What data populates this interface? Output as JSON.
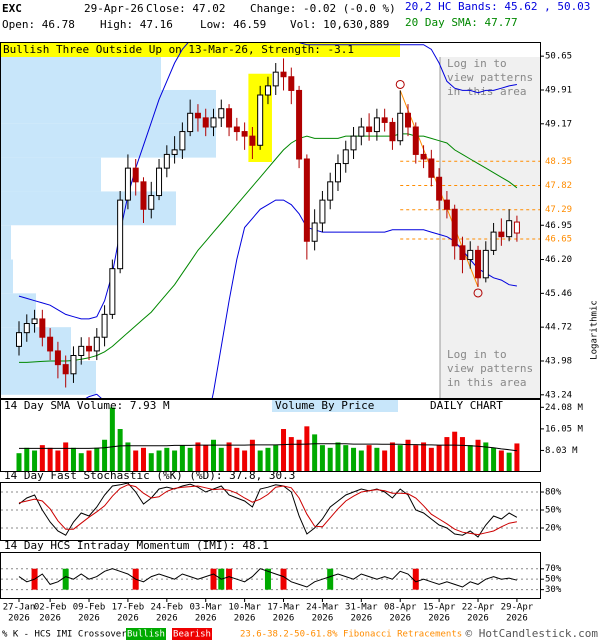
{
  "header": {
    "symbol": "EXC",
    "date": "29-Apr-26",
    "close": "Close: 47.02",
    "change": "Change: -0.02 (-0.0 %)",
    "open": "Open: 46.78",
    "high": "High: 47.16",
    "low": "Low: 46.59",
    "volume": "Vol: 10,630,889",
    "bands": "20,2 HC Bands: 45.62 , 50.03",
    "sma": "20 Day SMA: 47.77"
  },
  "chart_data": [
    {
      "type": "candlestick",
      "pattern_label": "Bullish Three Outside Up on 13-Mar-26, Strength: -3.1",
      "login_text": [
        "Log in to",
        "view patterns",
        "in this area"
      ],
      "scale_label": "Logarithmic",
      "year": "2026",
      "categories": [
        "27-Jan",
        null,
        null,
        null,
        "02-Feb",
        null,
        null,
        null,
        null,
        "09-Feb",
        null,
        null,
        null,
        null,
        "17-Feb",
        null,
        null,
        null,
        null,
        "24-Feb",
        null,
        null,
        null,
        null,
        "03-Mar",
        null,
        null,
        null,
        null,
        "10-Mar",
        null,
        null,
        null,
        null,
        "17-Mar",
        null,
        null,
        null,
        null,
        "24-Mar",
        null,
        null,
        null,
        null,
        "31-Mar",
        null,
        null,
        null,
        null,
        "08-Apr",
        null,
        null,
        null,
        null,
        "15-Apr",
        null,
        null,
        null,
        null,
        "22-Apr",
        null,
        null,
        null,
        null,
        "29-Apr"
      ],
      "open": [
        44.3,
        44.6,
        44.8,
        44.9,
        44.5,
        44.2,
        43.9,
        43.7,
        44.1,
        44.3,
        44.2,
        44.5,
        45.0,
        46.0,
        47.5,
        48.2,
        47.9,
        47.3,
        47.6,
        48.2,
        48.5,
        48.6,
        49.0,
        49.4,
        49.3,
        49.1,
        49.3,
        49.5,
        49.1,
        49.0,
        48.9,
        48.7,
        49.8,
        50.0,
        50.3,
        50.2,
        49.9,
        48.4,
        46.6,
        47.0,
        47.5,
        47.9,
        48.3,
        48.6,
        48.9,
        49.1,
        49.0,
        49.3,
        49.2,
        48.8,
        49.4,
        49.1,
        48.5,
        48.4,
        48.0,
        47.5,
        47.3,
        46.5,
        46.2,
        46.4,
        45.8,
        46.4,
        46.8,
        46.7,
        46.78
      ],
      "high": [
        44.85,
        45.0,
        45.1,
        45.1,
        44.7,
        44.4,
        44.1,
        44.3,
        44.5,
        44.5,
        44.7,
        45.2,
        46.2,
        47.7,
        48.5,
        48.4,
        48.0,
        47.9,
        48.4,
        48.7,
        48.9,
        49.2,
        49.7,
        49.6,
        49.5,
        49.5,
        49.7,
        49.6,
        49.3,
        49.2,
        49.1,
        50.0,
        50.2,
        50.5,
        50.6,
        50.4,
        50.0,
        48.5,
        47.3,
        47.7,
        48.1,
        48.5,
        48.8,
        49.1,
        49.3,
        49.4,
        49.5,
        49.5,
        49.3,
        49.9,
        49.6,
        49.2,
        48.7,
        48.6,
        48.2,
        47.7,
        47.4,
        46.7,
        46.6,
        46.5,
        46.6,
        47.0,
        47.1,
        47.3,
        47.16
      ],
      "low": [
        44.1,
        44.4,
        44.6,
        44.3,
        44.0,
        43.6,
        43.4,
        43.5,
        43.9,
        44.0,
        44.0,
        44.3,
        44.9,
        45.9,
        47.3,
        47.6,
        47.0,
        47.1,
        47.5,
        48.0,
        48.3,
        48.4,
        48.9,
        49.0,
        48.9,
        48.9,
        49.1,
        48.9,
        48.8,
        48.6,
        48.4,
        48.6,
        49.6,
        49.8,
        49.9,
        49.6,
        48.2,
        46.2,
        46.4,
        46.8,
        47.3,
        47.7,
        48.1,
        48.4,
        48.7,
        48.8,
        48.8,
        49.0,
        48.6,
        48.7,
        48.9,
        48.3,
        48.2,
        47.8,
        47.3,
        47.1,
        46.2,
        45.9,
        46.0,
        45.6,
        45.7,
        46.3,
        46.5,
        46.6,
        46.59
      ],
      "close": [
        44.6,
        44.8,
        44.9,
        44.5,
        44.2,
        43.9,
        43.7,
        44.1,
        44.3,
        44.2,
        44.5,
        45.0,
        46.0,
        47.5,
        48.2,
        47.9,
        47.3,
        47.6,
        48.2,
        48.5,
        48.6,
        49.0,
        49.4,
        49.3,
        49.1,
        49.3,
        49.5,
        49.1,
        49.0,
        48.9,
        48.7,
        49.8,
        50.0,
        50.3,
        50.2,
        49.9,
        48.4,
        46.6,
        47.0,
        47.5,
        47.9,
        48.3,
        48.6,
        48.9,
        49.1,
        49.0,
        49.3,
        49.2,
        48.8,
        49.4,
        49.1,
        48.5,
        48.4,
        48.0,
        47.5,
        47.3,
        46.5,
        46.2,
        46.4,
        45.8,
        46.4,
        46.8,
        46.7,
        47.05,
        47.02
      ],
      "overlays": [
        {
          "color": "#0000dd",
          "values": [
            45.4,
            45.35,
            45.3,
            45.25,
            45.2,
            45.1,
            45.0,
            44.95,
            44.9,
            44.9,
            44.95,
            45.3,
            45.9,
            46.8,
            47.6,
            48.2,
            48.7,
            49.2,
            49.7,
            50.1,
            50.5,
            50.8,
            51.0,
            51.2,
            51.4,
            51.5,
            51.6,
            51.6,
            51.5,
            51.4,
            51.3,
            51.3,
            51.3,
            51.2,
            51.1,
            51.0,
            50.95,
            50.9,
            50.9,
            50.9,
            50.9,
            50.9,
            50.9,
            50.9,
            50.9,
            50.9,
            50.9,
            50.9,
            50.9,
            50.9,
            50.9,
            50.9,
            50.9,
            50.8,
            50.5,
            50.1,
            49.95,
            49.9,
            49.9,
            49.85,
            49.9,
            49.9,
            49.95,
            50.0,
            50.03
          ]
        },
        {
          "color": "#008800",
          "values": [
            43.95,
            43.95,
            43.96,
            43.97,
            43.98,
            43.98,
            43.98,
            43.99,
            44.02,
            44.05,
            44.1,
            44.18,
            44.3,
            44.45,
            44.6,
            44.75,
            44.9,
            45.05,
            45.25,
            45.45,
            45.65,
            45.9,
            46.15,
            46.4,
            46.6,
            46.8,
            47.0,
            47.2,
            47.4,
            47.6,
            47.8,
            48.0,
            48.2,
            48.4,
            48.6,
            48.75,
            48.85,
            48.9,
            48.85,
            48.85,
            48.85,
            48.85,
            48.9,
            48.9,
            48.9,
            48.9,
            48.9,
            48.9,
            48.9,
            48.95,
            48.95,
            48.9,
            48.9,
            48.85,
            48.8,
            48.75,
            48.6,
            48.5,
            48.4,
            48.3,
            48.2,
            48.1,
            48.0,
            47.9,
            47.77
          ]
        },
        {
          "color": "#0000dd",
          "values": [
            42.5,
            42.55,
            42.6,
            42.7,
            42.8,
            42.85,
            42.9,
            43.0,
            43.1,
            43.2,
            43.25,
            43.1,
            42.7,
            42.1,
            41.6,
            41.3,
            41.1,
            40.9,
            40.8,
            40.8,
            40.8,
            41.0,
            41.3,
            41.8,
            42.5,
            43.3,
            44.3,
            45.3,
            46.2,
            46.9,
            47.1,
            47.3,
            47.4,
            47.5,
            47.5,
            47.4,
            47.2,
            46.9,
            46.85,
            46.8,
            46.8,
            46.8,
            46.8,
            46.8,
            46.8,
            46.8,
            46.8,
            46.8,
            46.85,
            46.85,
            46.85,
            46.85,
            46.85,
            46.8,
            46.75,
            46.7,
            46.6,
            46.4,
            46.2,
            46.0,
            45.9,
            45.8,
            45.75,
            45.65,
            45.62
          ]
        }
      ],
      "fib_levels": {
        "color": "#ff8c00",
        "values": [
          48.35,
          47.82,
          47.29,
          46.65
        ]
      },
      "volume_by_price": {
        "color": "#c8e6fa",
        "bins": [
          43.24,
          43.98,
          44.72,
          45.46,
          46.2,
          46.95,
          47.69,
          48.43,
          49.17,
          49.91,
          50.65
        ],
        "values": [
          95,
          70,
          35,
          12,
          10,
          175,
          100,
          215,
          215,
          160
        ]
      },
      "ylim": [
        43.17,
        50.96
      ],
      "yticks": [
        50.65,
        49.91,
        49.17,
        46.95,
        {
          "value": 46.2,
          "label": "46.20"
        },
        45.46,
        44.72,
        43.98,
        43.24
      ]
    },
    {
      "type": "bar",
      "title": "14 Day SMA Volume: 7.93 M",
      "label": "Volume By Price",
      "chart_label": "DAILY CHART",
      "up_color": "#00aa00",
      "down_color": "#ee0000",
      "line_color": "#000000",
      "values": [
        7,
        9,
        8,
        10,
        9,
        8,
        11,
        9,
        7,
        8,
        9,
        12,
        24,
        16,
        11,
        8,
        9,
        7,
        8,
        9,
        8,
        10,
        9,
        11,
        10,
        12,
        9,
        11,
        9,
        8,
        12,
        8,
        9,
        10,
        16,
        13,
        12,
        17,
        14,
        10,
        9,
        11,
        10,
        9,
        8,
        10,
        9,
        8,
        11,
        10,
        12,
        10,
        11,
        9,
        10,
        13,
        15,
        13,
        10,
        12,
        11,
        9,
        8,
        7.2,
        10.63
      ],
      "sma_values": [
        8.8,
        8.8,
        8.8,
        8.8,
        8.8,
        8.8,
        8.8,
        8.8,
        8.8,
        8.8,
        8.9,
        9.0,
        9.4,
        9.7,
        9.8,
        9.8,
        9.8,
        9.8,
        9.8,
        9.8,
        9.9,
        9.9,
        9.9,
        10.0,
        10.0,
        10.0,
        10.0,
        10.0,
        10.0,
        10.0,
        10.1,
        10.1,
        10.1,
        10.1,
        10.2,
        10.3,
        10.3,
        10.4,
        10.5,
        10.5,
        10.5,
        10.5,
        10.5,
        10.4,
        10.4,
        10.4,
        10.4,
        10.3,
        10.3,
        10.3,
        10.2,
        10.2,
        10.1,
        10.1,
        10.0,
        10.0,
        10.0,
        9.9,
        9.8,
        9.6,
        9.3,
        9.0,
        8.6,
        8.3,
        7.93
      ],
      "ylim": [
        0,
        26.8
      ],
      "yticks": [
        {
          "value": 24.08,
          "label": "24.08 M"
        },
        {
          "value": 16.05,
          "label": "16.05 M"
        },
        {
          "value": 8.03,
          "label": "8.03 M"
        }
      ]
    },
    {
      "type": "line",
      "title": "14 Day Fast Stochastic (%K) (%D): 37.8, 30.3",
      "series": [
        {
          "color": "#000000",
          "values": [
            60,
            70,
            75,
            50,
            30,
            15,
            8,
            30,
            45,
            40,
            55,
            75,
            90,
            92,
            95,
            80,
            60,
            70,
            85,
            88,
            85,
            90,
            93,
            88,
            80,
            85,
            90,
            75,
            70,
            65,
            55,
            85,
            88,
            92,
            90,
            80,
            40,
            10,
            20,
            35,
            55,
            65,
            75,
            80,
            85,
            82,
            85,
            80,
            70,
            85,
            75,
            50,
            45,
            35,
            25,
            20,
            10,
            8,
            15,
            5,
            25,
            40,
            35,
            45,
            37.8
          ]
        },
        {
          "color": "#cc0000",
          "values": [
            62,
            65,
            68,
            65,
            52,
            32,
            18,
            18,
            28,
            38,
            47,
            57,
            73,
            86,
            92,
            89,
            78,
            70,
            72,
            81,
            86,
            88,
            89,
            90,
            87,
            84,
            85,
            83,
            78,
            70,
            63,
            68,
            76,
            88,
            90,
            87,
            70,
            43,
            23,
            22,
            37,
            52,
            65,
            73,
            80,
            82,
            84,
            82,
            78,
            78,
            77,
            70,
            57,
            43,
            35,
            27,
            18,
            13,
            11,
            9,
            12,
            15,
            22,
            28,
            30.3
          ]
        }
      ],
      "ylim": [
        0,
        96.7
      ],
      "yticks": [
        {
          "value": 80,
          "label": "80%"
        },
        {
          "value": 50,
          "label": "50%"
        },
        {
          "value": 20,
          "label": "20%"
        }
      ]
    },
    {
      "type": "line",
      "title": "14 Day HCS Intraday Momentum (IMI): 48.1",
      "series": [
        {
          "color": "#000000",
          "values": [
            55,
            45,
            50,
            60,
            40,
            45,
            55,
            50,
            60,
            50,
            55,
            65,
            70,
            65,
            60,
            50,
            45,
            55,
            60,
            55,
            50,
            60,
            55,
            50,
            55,
            60,
            50,
            55,
            50,
            45,
            55,
            70,
            65,
            60,
            55,
            45,
            40,
            35,
            45,
            50,
            55,
            60,
            55,
            50,
            60,
            55,
            50,
            55,
            50,
            65,
            60,
            45,
            50,
            45,
            40,
            45,
            40,
            35,
            45,
            40,
            50,
            55,
            50,
            52,
            48.1
          ]
        }
      ],
      "signals": [
        null,
        null,
        "Bearish",
        null,
        null,
        null,
        "Bullish",
        null,
        null,
        null,
        null,
        null,
        null,
        null,
        null,
        "Bearish",
        null,
        null,
        null,
        null,
        null,
        null,
        null,
        null,
        null,
        "Bearish",
        "Bullish",
        "Bearish",
        null,
        null,
        null,
        null,
        "Bullish",
        null,
        "Bearish",
        null,
        null,
        null,
        null,
        null,
        "Bullish",
        null,
        null,
        null,
        null,
        null,
        null,
        null,
        null,
        null,
        null,
        "Bearish",
        null,
        null,
        null,
        null,
        null,
        null,
        null,
        null,
        null,
        null,
        null,
        null,
        null
      ],
      "ylim": [
        14,
        102
      ],
      "yticks": [
        {
          "value": 70,
          "label": "70%"
        },
        {
          "value": 50,
          "label": "50%"
        },
        {
          "value": 30,
          "label": "30%"
        }
      ]
    }
  ],
  "footer": {
    "crossover": "% K - HCS IMI Crossover,",
    "legend": [
      {
        "name": "Bullish",
        "color": "#00aa00"
      },
      {
        "name": "Bearish",
        "color": "#ee0000"
      }
    ],
    "fibonacci": "23.6-38.2-50-61.8% Fibonacci Retracements",
    "copyright": "© HotCandlestick.com"
  }
}
